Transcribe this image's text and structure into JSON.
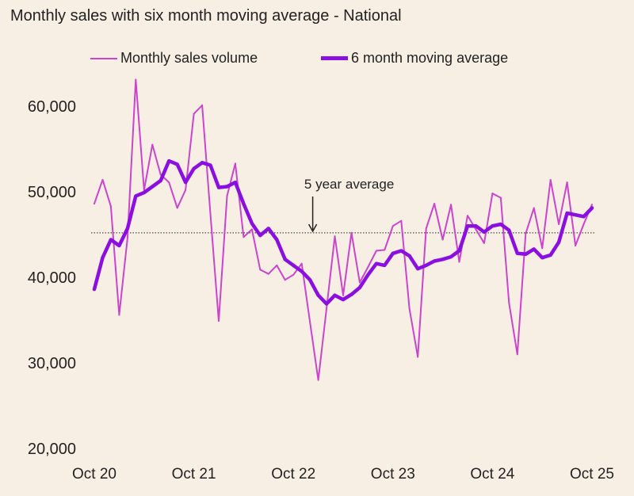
{
  "chart_data": {
    "type": "line",
    "title": "Monthly sales with six month moving average - National",
    "x": [
      "Oct 20",
      "Nov 20",
      "Dec 20",
      "Jan 21",
      "Feb 21",
      "Mar 21",
      "Apr 21",
      "May 21",
      "Jun 21",
      "Jul 21",
      "Aug 21",
      "Sep 21",
      "Oct 21",
      "Nov 21",
      "Dec 21",
      "Jan 22",
      "Feb 22",
      "Mar 22",
      "Apr 22",
      "May 22",
      "Jun 22",
      "Jul 22",
      "Aug 22",
      "Sep 22",
      "Oct 22",
      "Nov 22",
      "Dec 22",
      "Jan 23",
      "Feb 23",
      "Mar 23",
      "Apr 23",
      "May 23",
      "Jun 23",
      "Jul 23",
      "Aug 23",
      "Sep 23",
      "Oct 23",
      "Nov 23",
      "Dec 23",
      "Jan 24",
      "Feb 24",
      "Mar 24",
      "Apr 24",
      "May 24",
      "Jun 24",
      "Jul 24",
      "Aug 24",
      "Sep 24",
      "Oct 24",
      "Nov 24",
      "Dec 24",
      "Jan 25",
      "Feb 25",
      "Mar 25",
      "Apr 25",
      "May 25",
      "Jun 25",
      "Jul 25",
      "Aug 25",
      "Sep 25",
      "Oct 25"
    ],
    "x_tick_labels": [
      "Oct 20",
      "Oct 21",
      "Oct 22",
      "Oct 23",
      "Oct 24",
      "Oct 25"
    ],
    "y_tick_labels": [
      "20,000",
      "30,000",
      "40,000",
      "50,000",
      "60,000"
    ],
    "y_ticks": [
      20000,
      30000,
      40000,
      50000,
      60000
    ],
    "ylim": [
      20000,
      60000
    ],
    "grid": false,
    "legend_placement": "top",
    "series": [
      {
        "name": "Monthly sales volume",
        "color": "#cc44cc",
        "values": [
          48600,
          51400,
          48300,
          35600,
          44600,
          63100,
          50200,
          55500,
          52000,
          51100,
          48100,
          50200,
          59100,
          60100,
          47400,
          34900,
          49500,
          53300,
          44700,
          45600,
          40900,
          40400,
          41400,
          39700,
          40300,
          41600,
          34800,
          28000,
          36400,
          44800,
          37900,
          45200,
          39400,
          41200,
          43100,
          43200,
          46000,
          46600,
          36300,
          30700,
          45700,
          48600,
          44400,
          48500,
          41800,
          47200,
          45600,
          44000,
          49800,
          49300,
          37000,
          31000,
          45100,
          48100,
          43400,
          51400,
          46200,
          51100,
          43700,
          46200,
          48500
        ]
      },
      {
        "name": "6 month moving average",
        "color": "#8a0fe0",
        "values": [
          38600,
          42300,
          44400,
          43700,
          45700,
          49500,
          49900,
          50600,
          51300,
          53600,
          53200,
          51100,
          52700,
          53400,
          53100,
          50500,
          50600,
          51100,
          48600,
          46300,
          44900,
          45700,
          44400,
          42100,
          41400,
          40700,
          39700,
          37900,
          36900,
          37900,
          37400,
          38000,
          38800,
          40300,
          41600,
          41400,
          42800,
          43100,
          42500,
          41000,
          41400,
          41900,
          42100,
          42400,
          43100,
          46000,
          46000,
          45300,
          46000,
          46200,
          45500,
          42800,
          42700,
          43300,
          42300,
          42600,
          44100,
          47500,
          47300,
          47100,
          48100
        ]
      }
    ],
    "reference_line": {
      "label": "5 year average",
      "value": 45200,
      "style": "dotted",
      "arrow_at": "Jan 23"
    }
  }
}
